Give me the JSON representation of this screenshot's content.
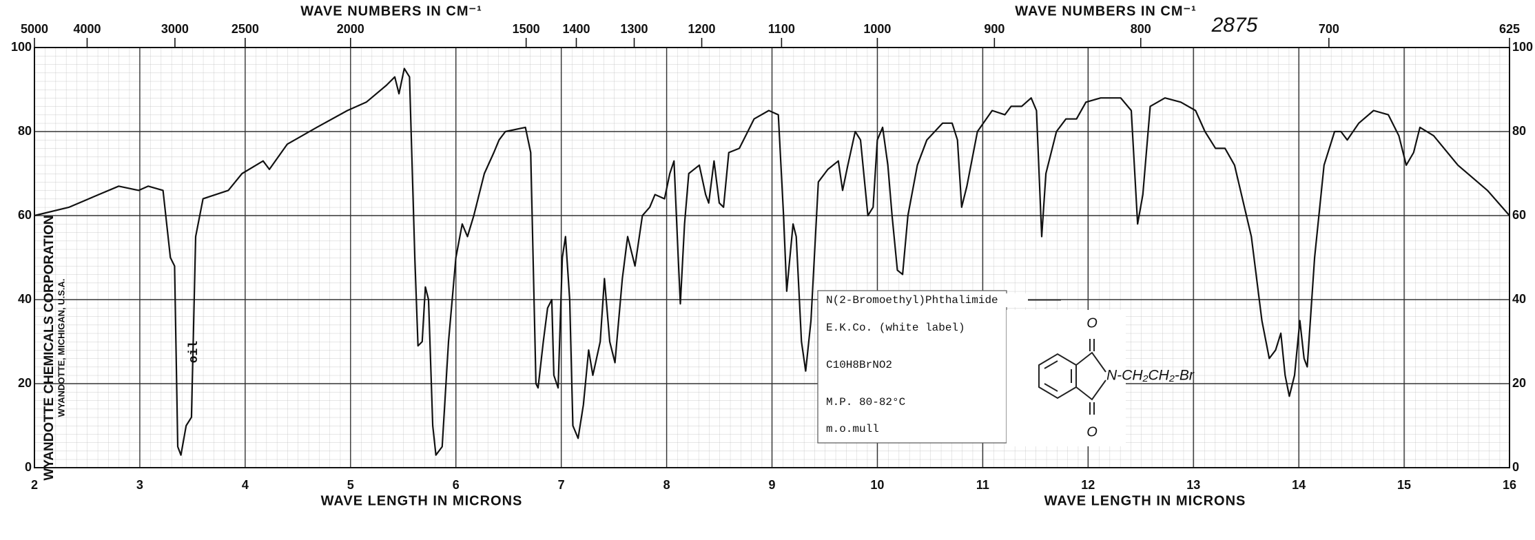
{
  "chart_data": {
    "type": "line",
    "sheet_number": "2875",
    "x2label": "WAVE NUMBERS IN CM⁻¹",
    "xlabel": "WAVE LENGTH IN MICRONS",
    "company": "WYANDOTTE CHEMICALS CORPORATION",
    "company_location": "WYANDOTTE, MICHIGAN, U.S.A.",
    "annotation_oil": "oil",
    "sample": {
      "name": "N(2-Bromoethyl)Phthalimide",
      "source": "E.K.Co. (white label)",
      "formula": "C10H8BrNO2",
      "melting_point": "M.P. 80-82°C",
      "preparation": "m.o.mull"
    },
    "structure": {
      "oxygen": "O",
      "substituent": "N-CH₂CH₂-Br"
    },
    "xlim": [
      2,
      16
    ],
    "xticks": [
      2,
      3,
      4,
      5,
      6,
      7,
      8,
      9,
      10,
      11,
      12,
      13,
      14,
      15,
      16
    ],
    "x2ticks": [
      5000,
      4000,
      3000,
      2500,
      2000,
      1500,
      1400,
      1300,
      1200,
      1100,
      1000,
      900,
      800,
      700,
      625
    ],
    "ylim": [
      0,
      100
    ],
    "yticks": [
      0,
      20,
      40,
      60,
      80,
      100
    ],
    "grid": true,
    "color": "#111111",
    "x": [
      2.0,
      2.33,
      2.61,
      2.8,
      2.99,
      3.08,
      3.22,
      3.29,
      3.33,
      3.36,
      3.39,
      3.44,
      3.49,
      3.53,
      3.6,
      3.84,
      3.97,
      4.17,
      4.23,
      4.4,
      4.68,
      4.97,
      5.15,
      5.34,
      5.42,
      5.46,
      5.51,
      5.56,
      5.61,
      5.64,
      5.68,
      5.71,
      5.74,
      5.78,
      5.81,
      5.87,
      5.93,
      6.0,
      6.06,
      6.11,
      6.17,
      6.27,
      6.36,
      6.41,
      6.47,
      6.66,
      6.71,
      6.76,
      6.78,
      6.83,
      6.87,
      6.91,
      6.93,
      6.97,
      7.01,
      7.04,
      7.08,
      7.11,
      7.16,
      7.21,
      7.26,
      7.3,
      7.37,
      7.41,
      7.46,
      7.51,
      7.58,
      7.63,
      7.7,
      7.77,
      7.84,
      7.89,
      7.98,
      8.03,
      8.07,
      8.11,
      8.13,
      8.17,
      8.21,
      8.31,
      8.37,
      8.4,
      8.45,
      8.5,
      8.54,
      8.59,
      8.69,
      8.75,
      8.83,
      8.97,
      9.06,
      9.11,
      9.14,
      9.2,
      9.23,
      9.28,
      9.32,
      9.37,
      9.44,
      9.53,
      9.63,
      9.67,
      9.72,
      9.79,
      9.84,
      9.91,
      9.96,
      10.0,
      10.05,
      10.1,
      10.14,
      10.19,
      10.24,
      10.29,
      10.38,
      10.47,
      10.62,
      10.71,
      10.76,
      10.8,
      10.85,
      10.95,
      11.09,
      11.21,
      11.27,
      11.37,
      11.46,
      11.51,
      11.56,
      11.6,
      11.7,
      11.79,
      11.89,
      11.98,
      12.12,
      12.31,
      12.41,
      12.47,
      12.52,
      12.59,
      12.73,
      12.88,
      13.02,
      13.11,
      13.21,
      13.3,
      13.39,
      13.55,
      13.65,
      13.72,
      13.78,
      13.83,
      13.87,
      13.91,
      13.96,
      14.01,
      14.05,
      14.08,
      14.15,
      14.24,
      14.34,
      14.4,
      14.46,
      14.57,
      14.71,
      14.85,
      14.95,
      15.02,
      15.09,
      15.15,
      15.28,
      15.51,
      15.79,
      16.0
    ],
    "values": [
      60,
      62,
      65,
      67,
      66,
      67,
      66,
      50,
      48,
      5,
      3,
      10,
      12,
      55,
      64,
      66,
      70,
      73,
      71,
      77,
      81,
      85,
      87,
      91,
      93,
      89,
      95,
      93,
      50,
      29,
      30,
      43,
      40,
      10,
      3,
      5,
      30,
      50,
      58,
      55,
      60,
      70,
      75,
      78,
      80,
      81,
      75,
      20,
      19,
      30,
      38,
      40,
      22,
      19,
      50,
      55,
      40,
      10,
      7,
      15,
      28,
      22,
      30,
      45,
      30,
      25,
      45,
      55,
      48,
      60,
      62,
      65,
      64,
      70,
      73,
      50,
      39,
      58,
      70,
      72,
      65,
      63,
      73,
      63,
      62,
      75,
      76,
      79,
      83,
      85,
      84,
      60,
      42,
      58,
      55,
      30,
      23,
      35,
      68,
      71,
      73,
      66,
      72,
      80,
      78,
      60,
      62,
      78,
      81,
      72,
      60,
      47,
      46,
      60,
      72,
      78,
      82,
      82,
      78,
      62,
      67,
      80,
      85,
      84,
      86,
      86,
      88,
      85,
      55,
      70,
      80,
      83,
      83,
      87,
      88,
      88,
      85,
      58,
      65,
      86,
      88,
      87,
      85,
      80,
      76,
      76,
      72,
      55,
      35,
      26,
      28,
      32,
      22,
      17,
      22,
      35,
      26,
      24,
      50,
      72,
      80,
      80,
      78,
      82,
      85,
      84,
      79,
      72,
      75,
      81,
      79,
      72,
      66,
      60
    ]
  }
}
